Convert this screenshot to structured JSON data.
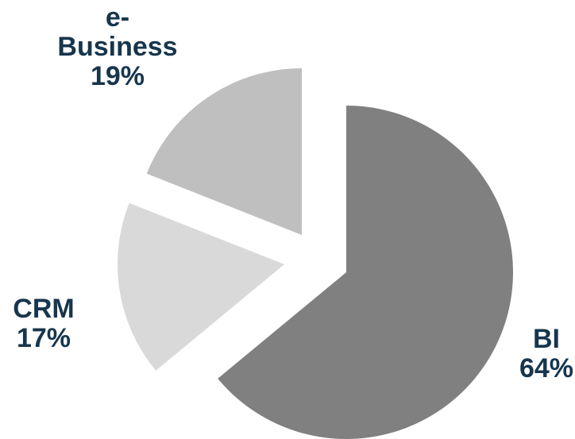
{
  "chart_data": {
    "type": "pie",
    "title": "",
    "slices": [
      {
        "label_lines": [
          "BI",
          "64%"
        ],
        "value": 64,
        "color": "#808080"
      },
      {
        "label_lines": [
          "CRM",
          "17%"
        ],
        "value": 17,
        "color": "#d9d9d9"
      },
      {
        "label_lines": [
          "e-",
          "Business",
          "19%"
        ],
        "value": 19,
        "color": "#bfbfbf"
      }
    ],
    "exploded": true,
    "label_color": "#17364d"
  }
}
